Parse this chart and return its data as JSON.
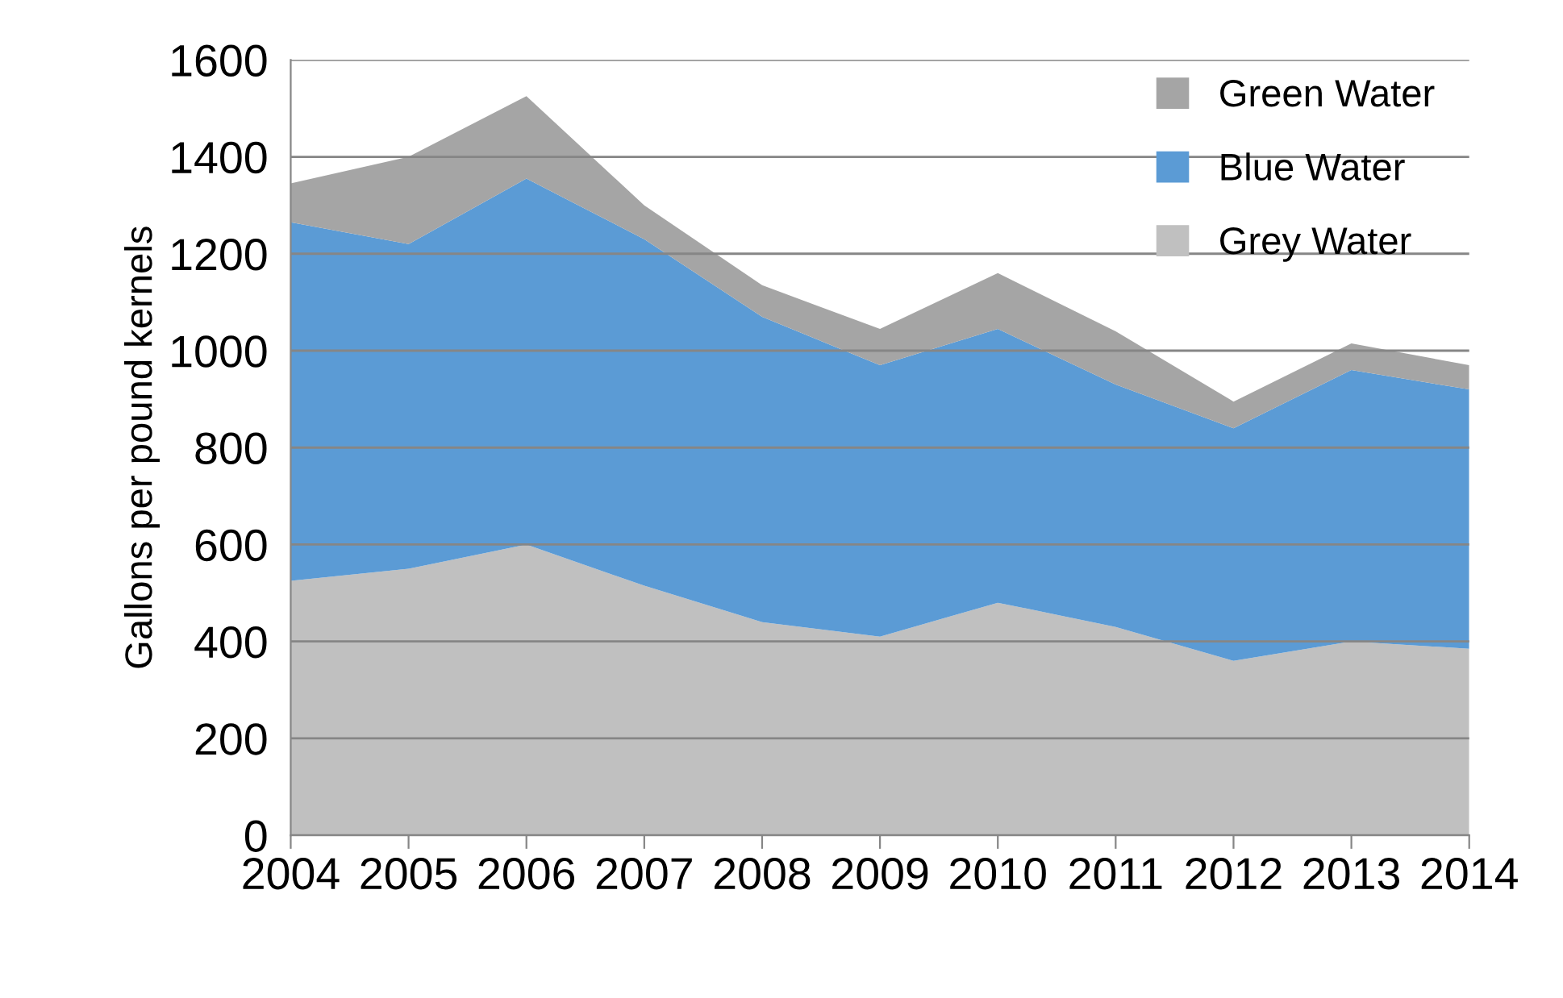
{
  "chart_data": {
    "type": "area",
    "stacked": true,
    "ylabel": "Gallons per pound kernels",
    "categories": [
      "2004",
      "2005",
      "2006",
      "2007",
      "2008",
      "2009",
      "2010",
      "2011",
      "2012",
      "2013",
      "2014"
    ],
    "series": [
      {
        "name": "Grey Water",
        "color": "#c0c0c0",
        "values": [
          525,
          550,
          600,
          515,
          440,
          410,
          480,
          430,
          360,
          400,
          385
        ]
      },
      {
        "name": "Blue Water",
        "color": "#5b9bd5",
        "values": [
          740,
          670,
          755,
          715,
          630,
          560,
          565,
          500,
          480,
          560,
          535
        ]
      },
      {
        "name": "Green Water",
        "color": "#a5a5a5",
        "values": [
          80,
          180,
          170,
          70,
          65,
          75,
          115,
          110,
          55,
          55,
          50
        ]
      }
    ],
    "ylim": [
      0,
      1600
    ],
    "yticks": [
      0,
      200,
      400,
      600,
      800,
      1000,
      1200,
      1400,
      1600
    ],
    "grid": "y",
    "legend": "top right"
  }
}
